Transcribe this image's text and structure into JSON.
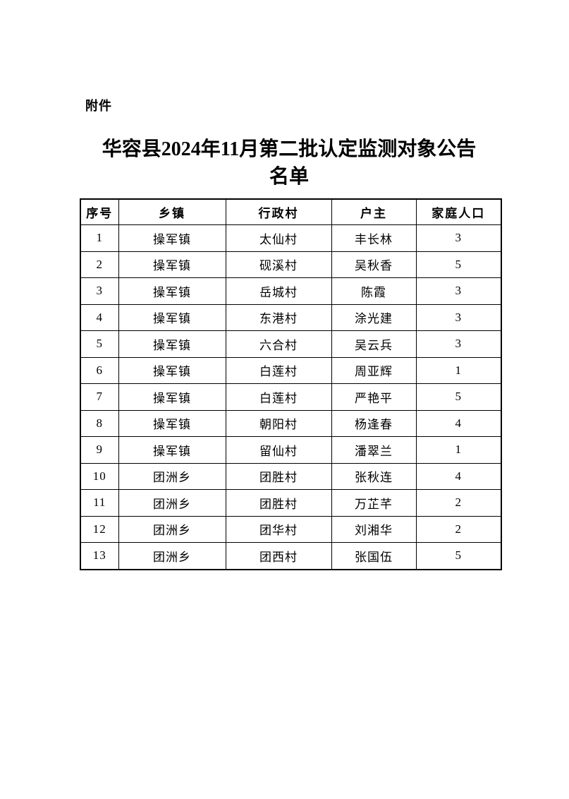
{
  "document": {
    "attachment_label": "附件",
    "title_line1": "华容县2024年11月第二批认定监测对象公告",
    "title_line2": "名单"
  },
  "table": {
    "headers": [
      "序号",
      "乡镇",
      "行政村",
      "户主",
      "家庭人口"
    ],
    "rows": [
      [
        "1",
        "操军镇",
        "太仙村",
        "丰长林",
        "3"
      ],
      [
        "2",
        "操军镇",
        "砚溪村",
        "吴秋香",
        "5"
      ],
      [
        "3",
        "操军镇",
        "岳城村",
        "陈霞",
        "3"
      ],
      [
        "4",
        "操军镇",
        "东港村",
        "涂光建",
        "3"
      ],
      [
        "5",
        "操军镇",
        "六合村",
        "吴云兵",
        "3"
      ],
      [
        "6",
        "操军镇",
        "白莲村",
        "周亚辉",
        "1"
      ],
      [
        "7",
        "操军镇",
        "白莲村",
        "严艳平",
        "5"
      ],
      [
        "8",
        "操军镇",
        "朝阳村",
        "杨逢春",
        "4"
      ],
      [
        "9",
        "操军镇",
        "留仙村",
        "潘翠兰",
        "1"
      ],
      [
        "10",
        "团洲乡",
        "团胜村",
        "张秋连",
        "4"
      ],
      [
        "11",
        "团洲乡",
        "团胜村",
        "万芷芊",
        "2"
      ],
      [
        "12",
        "团洲乡",
        "团华村",
        "刘湘华",
        "2"
      ],
      [
        "13",
        "团洲乡",
        "团西村",
        "张国伍",
        "5"
      ]
    ]
  },
  "colors": {
    "page_background": "#ffffff",
    "text": "#000000",
    "table_border": "#000000"
  }
}
